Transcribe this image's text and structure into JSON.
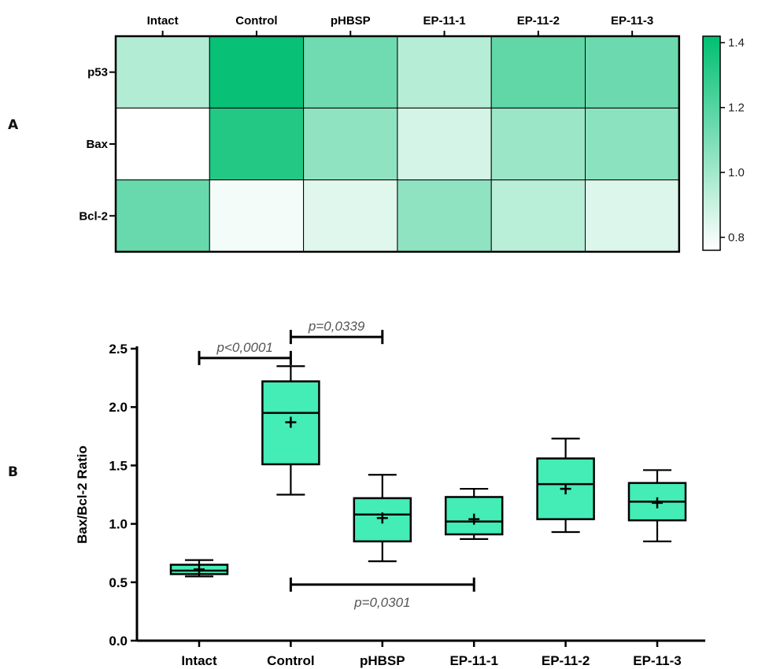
{
  "panel_labels": {
    "a": "A",
    "b": "B"
  },
  "chart_data": [
    {
      "type": "heatmap",
      "panel": "A",
      "columns": [
        "Intact",
        "Control",
        "pHBSP",
        "EP-11-1",
        "EP-11-2",
        "EP-11-3"
      ],
      "rows": [
        "p53",
        "Bax",
        "Bcl-2"
      ],
      "values": [
        [
          0.96,
          1.4,
          1.13,
          0.95,
          1.17,
          1.14
        ],
        [
          0.76,
          1.33,
          1.05,
          0.87,
          1.02,
          1.06
        ],
        [
          1.15,
          0.79,
          0.84,
          1.05,
          0.94,
          0.85
        ]
      ],
      "colorbar": {
        "min": 0.76,
        "max": 1.42,
        "ticks": [
          "0.8",
          "1.0",
          "1.2",
          "1.4"
        ],
        "tick_values": [
          0.8,
          1.0,
          1.2,
          1.4
        ]
      },
      "colors": {
        "low": "#ffffff",
        "high": "#00bf72"
      }
    },
    {
      "type": "box",
      "panel": "B",
      "ylabel": "Bax/Bcl-2 Ratio",
      "ylim": [
        0,
        2.5
      ],
      "yticks": [
        "0.0",
        "0.5",
        "1.0",
        "1.5",
        "2.0",
        "2.5"
      ],
      "ytick_values": [
        0,
        0.5,
        1.0,
        1.5,
        2.0,
        2.5
      ],
      "categories": [
        "Intact",
        "Control",
        "pHBSP",
        "EP-11-1",
        "EP-11-2",
        "EP-11-3"
      ],
      "boxes": [
        {
          "min": 0.55,
          "q1": 0.57,
          "median": 0.6,
          "q3": 0.65,
          "max": 0.69,
          "mean": 0.61
        },
        {
          "min": 1.25,
          "q1": 1.51,
          "median": 1.95,
          "q3": 2.22,
          "max": 2.35,
          "mean": 1.87
        },
        {
          "min": 0.68,
          "q1": 0.85,
          "median": 1.08,
          "q3": 1.22,
          "max": 1.42,
          "mean": 1.05
        },
        {
          "min": 0.87,
          "q1": 0.91,
          "median": 1.02,
          "q3": 1.23,
          "max": 1.3,
          "mean": 1.04
        },
        {
          "min": 0.93,
          "q1": 1.04,
          "median": 1.34,
          "q3": 1.56,
          "max": 1.73,
          "mean": 1.3
        },
        {
          "min": 0.85,
          "q1": 1.03,
          "median": 1.19,
          "q3": 1.35,
          "max": 1.46,
          "mean": 1.18
        }
      ],
      "annotations": [
        {
          "from": 0,
          "to": 1,
          "y": 2.42,
          "label": "p<0,0001"
        },
        {
          "from": 1,
          "to": 2,
          "y": 2.6,
          "label": "p=0,0339"
        },
        {
          "from": 1,
          "to": 3,
          "y": 0.48,
          "label": "p=0,0301",
          "label_below": true
        }
      ],
      "colors": {
        "box_fill": "#44ecb6",
        "stroke": "#000000"
      }
    }
  ]
}
